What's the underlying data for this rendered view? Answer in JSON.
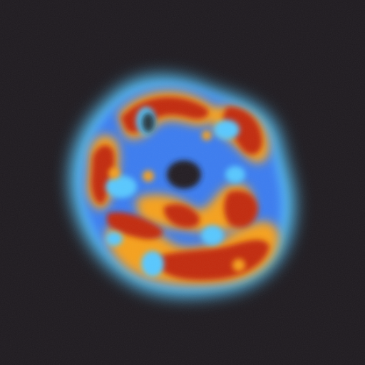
{
  "image": {
    "subject": "heatmap-blob",
    "background_color": "#1e1a1f",
    "palette": {
      "halo": "#58c8ff",
      "cool": "#3a7cf0",
      "mid": "#58c8ff",
      "warm": "#f6a11a",
      "hot": "#c22a0a",
      "core_dark": "#211c22"
    }
  }
}
